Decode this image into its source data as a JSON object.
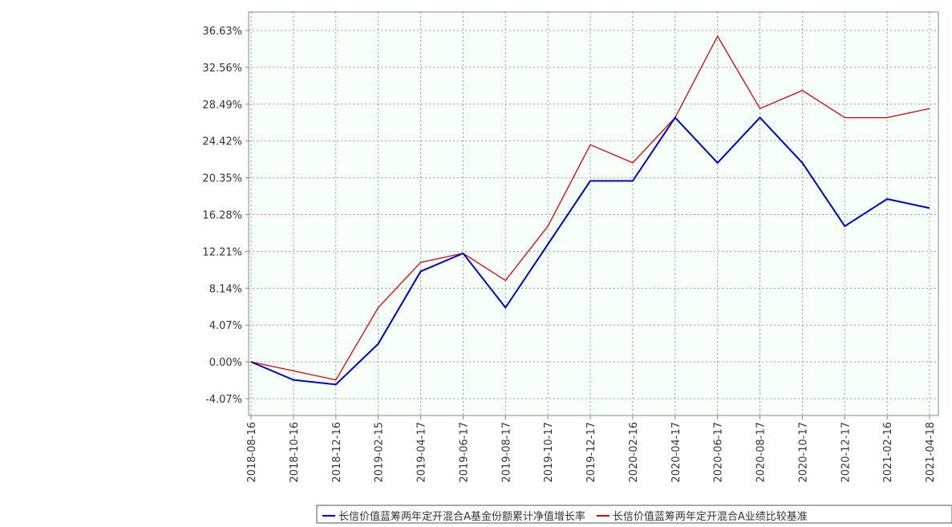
{
  "chart_data": {
    "type": "line",
    "categories": [
      "2018-08-16",
      "2018-10-16",
      "2018-12-16",
      "2019-02-15",
      "2019-04-17",
      "2019-06-17",
      "2019-08-17",
      "2019-10-17",
      "2019-12-17",
      "2020-02-16",
      "2020-04-17",
      "2020-06-17",
      "2020-08-17",
      "2020-10-17",
      "2020-12-17",
      "2021-02-16",
      "2021-04-18"
    ],
    "series": [
      {
        "name": "长信价值蓝筹两年定开混合A基金份额累计净值增长率",
        "color": "#0000cc",
        "values": [
          0,
          -2,
          -2.5,
          2,
          10,
          12,
          6,
          13,
          20,
          20,
          27,
          22,
          27,
          22,
          15,
          18,
          17
        ]
      },
      {
        "name": "长信价值蓝筹两年定开混合A业绩比较基准",
        "color": "#e00000",
        "values": [
          0,
          -1,
          -2,
          6,
          11,
          12,
          9,
          15,
          24,
          22,
          27,
          36,
          28,
          30,
          27,
          27,
          28
        ]
      }
    ],
    "ylim": [
      -5.93,
      38.67
    ],
    "yticks": [
      {
        "value": -4.07,
        "label": "-4.07%"
      },
      {
        "value": 0,
        "label": "0.00%"
      },
      {
        "value": 4.07,
        "label": "4.07%"
      },
      {
        "value": 8.14,
        "label": "8.14%"
      },
      {
        "value": 12.21,
        "label": "12.21%"
      },
      {
        "value": 16.28,
        "label": "16.28%"
      },
      {
        "value": 20.35,
        "label": "20.35%"
      },
      {
        "value": 24.42,
        "label": "24.42%"
      },
      {
        "value": 28.49,
        "label": "28.49%"
      },
      {
        "value": 32.56,
        "label": "32.56%"
      },
      {
        "value": 36.63,
        "label": "36.63%"
      }
    ],
    "grid": true
  }
}
